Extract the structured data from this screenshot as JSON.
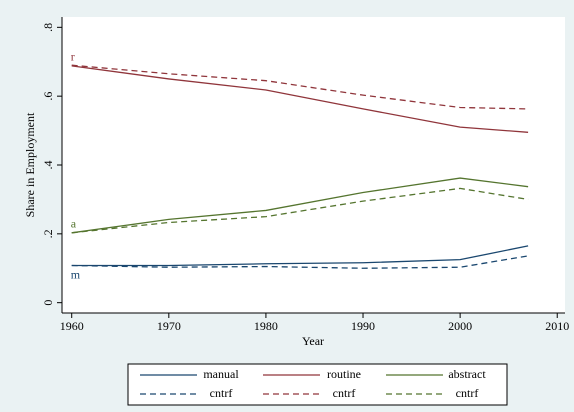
{
  "chart_data": {
    "type": "line",
    "x_label": "Year",
    "y_label": "Share in Employment",
    "x": [
      1960,
      1970,
      1980,
      1990,
      2000,
      2007
    ],
    "xlim": [
      1959,
      2010.8
    ],
    "xticks": [
      1960,
      1970,
      1980,
      1990,
      2000,
      2010
    ],
    "ylim": [
      -0.03,
      0.83
    ],
    "yticks": [
      {
        "value": 0,
        "label": "0"
      },
      {
        "value": 0.2,
        "label": ".2"
      },
      {
        "value": 0.4,
        "label": ".4"
      },
      {
        "value": 0.6,
        "label": ".6"
      },
      {
        "value": 0.8,
        "label": ".8"
      }
    ],
    "series": [
      {
        "name": "manual",
        "color": "#1a476f",
        "dash": false,
        "label": "m",
        "values": [
          0.108,
          0.108,
          0.113,
          0.116,
          0.125,
          0.165
        ]
      },
      {
        "name": "routine",
        "color": "#90353b",
        "dash": false,
        "label": "r",
        "values": [
          0.688,
          0.65,
          0.618,
          0.563,
          0.51,
          0.495
        ]
      },
      {
        "name": "abstract",
        "color": "#55752f",
        "dash": false,
        "label": "a",
        "values": [
          0.203,
          0.242,
          0.268,
          0.32,
          0.362,
          0.337
        ]
      },
      {
        "name": "cntrf",
        "color": "#1a476f",
        "dash": true,
        "values": [
          0.108,
          0.103,
          0.105,
          0.1,
          0.103,
          0.136
        ]
      },
      {
        "name": "cntrf",
        "color": "#90353b",
        "dash": true,
        "values": [
          0.69,
          0.665,
          0.645,
          0.603,
          0.567,
          0.563
        ]
      },
      {
        "name": "cntrf",
        "color": "#55752f",
        "dash": true,
        "values": [
          0.203,
          0.233,
          0.25,
          0.295,
          0.332,
          0.3
        ]
      }
    ]
  }
}
